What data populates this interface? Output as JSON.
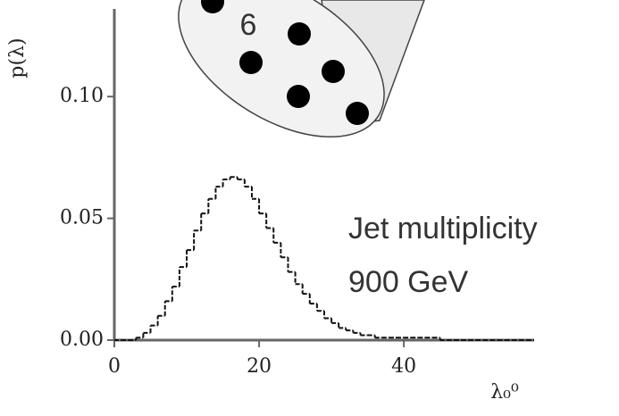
{
  "chart_data": {
    "type": "histogram",
    "annotation": [
      "Jet multiplicity",
      "900 GeV"
    ],
    "inset_label": "6",
    "xlabel": "λ₀⁰",
    "ylabel": "p(λ)",
    "xlim": [
      0,
      58
    ],
    "ylim": [
      0,
      0.136
    ],
    "xticks": [
      0,
      20,
      40
    ],
    "yticks": [
      {
        "value": 0,
        "label": "0.00"
      },
      {
        "value": 0.05,
        "label": "0.05"
      },
      {
        "value": 0.1,
        "label": "0.10"
      }
    ],
    "color": "#111111",
    "bins": [
      0,
      1,
      2,
      3,
      4,
      5,
      6,
      7,
      8,
      9,
      10,
      11,
      12,
      13,
      14,
      15,
      16,
      17,
      18,
      19,
      20,
      21,
      22,
      23,
      24,
      25,
      26,
      27,
      28,
      29,
      30,
      31,
      32,
      33,
      34,
      35,
      36,
      37,
      38,
      39,
      40,
      41,
      42,
      43,
      44,
      45,
      46,
      47,
      48,
      49,
      50,
      51,
      52,
      53,
      54,
      55,
      56,
      57,
      58
    ],
    "values": [
      0,
      0,
      0,
      0.001,
      0.003,
      0.006,
      0.01,
      0.016,
      0.022,
      0.03,
      0.037,
      0.045,
      0.052,
      0.058,
      0.063,
      0.066,
      0.067,
      0.066,
      0.063,
      0.058,
      0.052,
      0.046,
      0.04,
      0.034,
      0.028,
      0.023,
      0.019,
      0.015,
      0.012,
      0.009,
      0.007,
      0.005,
      0.004,
      0.003,
      0.002,
      0.002,
      0.001,
      0.001,
      0.001,
      0.001,
      0.001,
      0.001,
      0.001,
      0.001,
      0.001,
      0,
      0,
      0,
      0,
      0,
      0,
      0,
      0,
      0,
      0,
      0,
      0,
      0
    ]
  }
}
